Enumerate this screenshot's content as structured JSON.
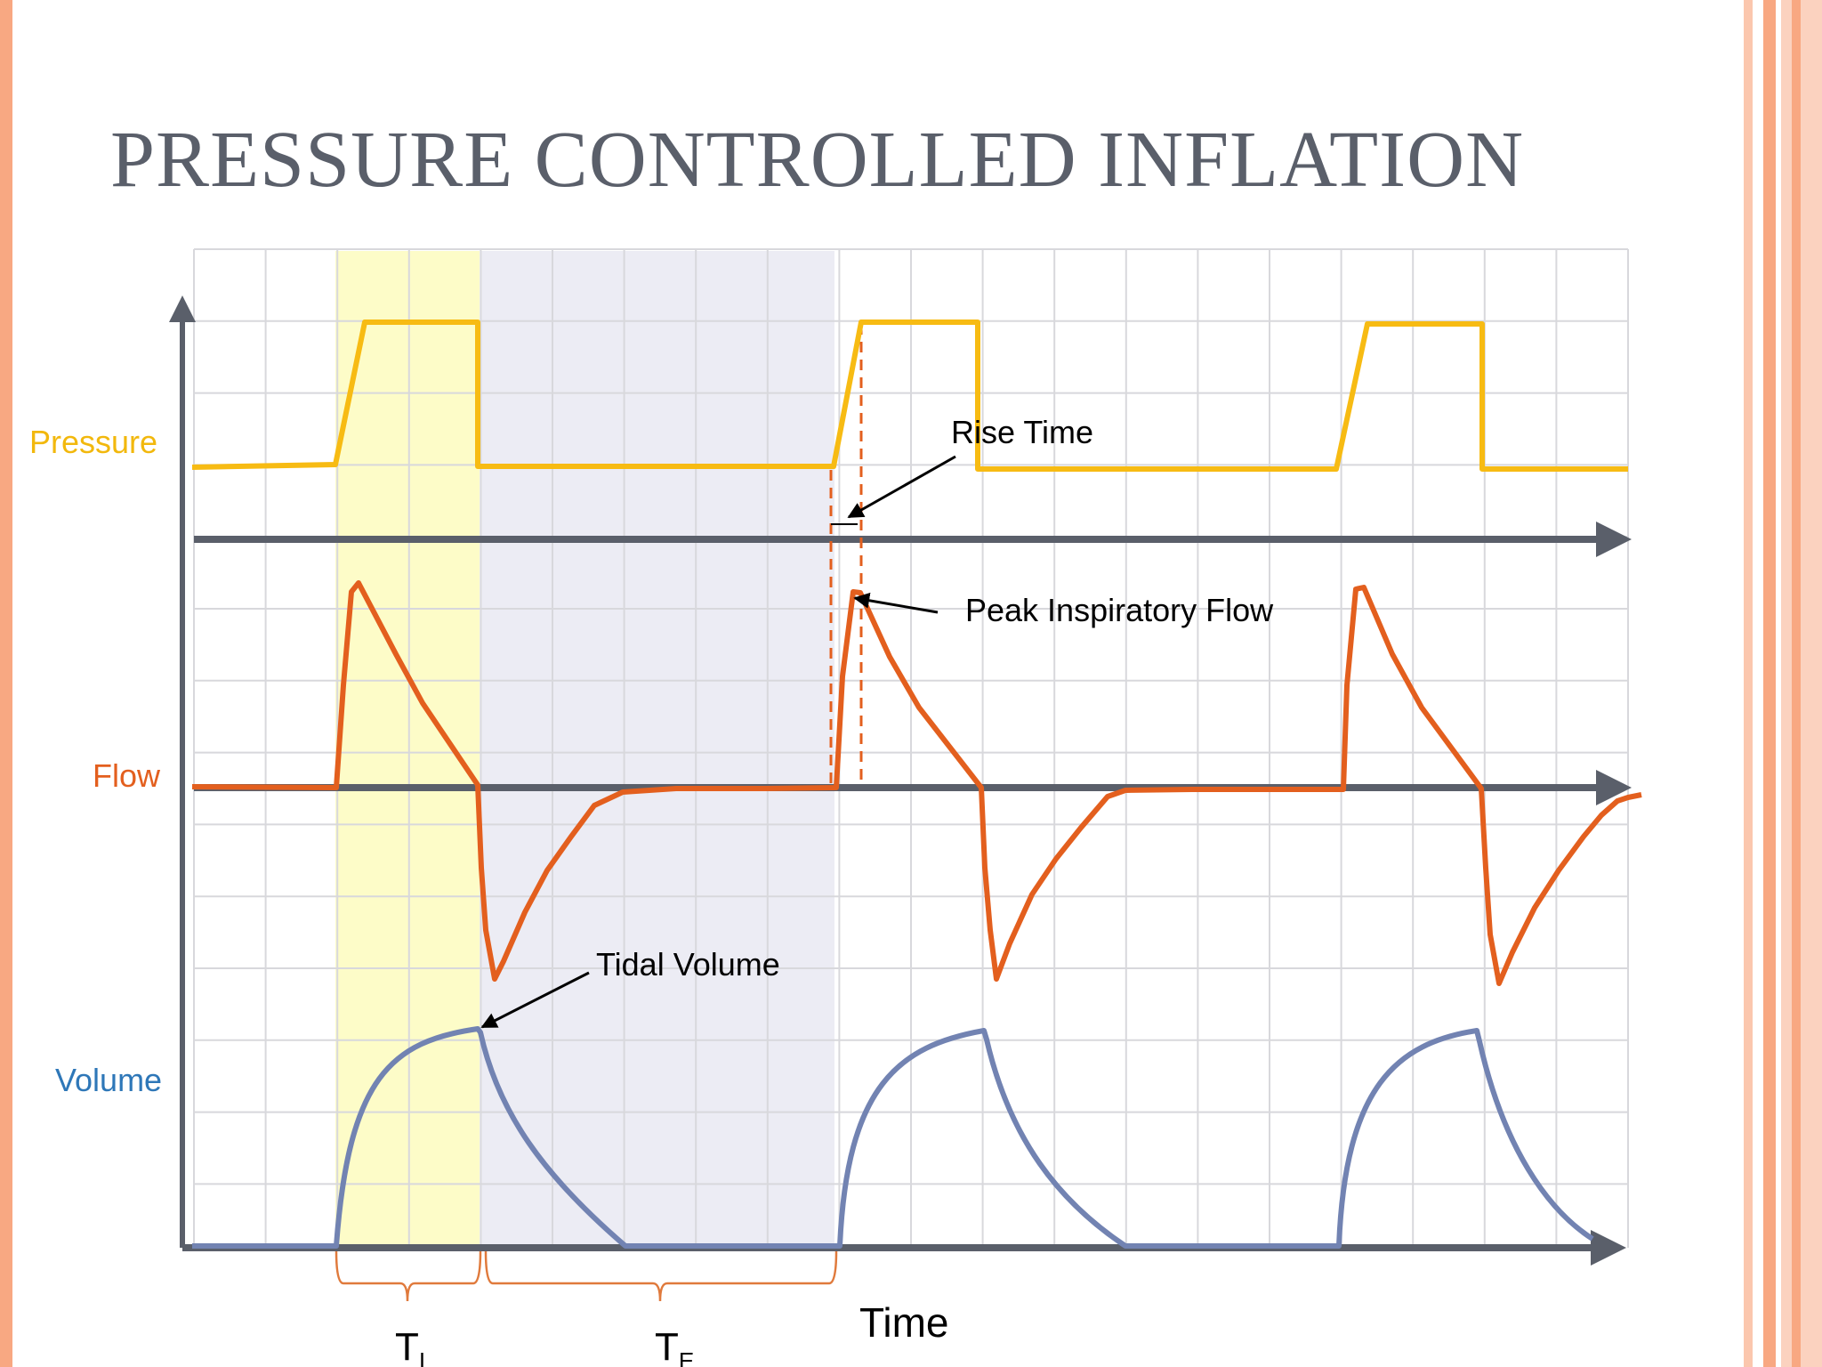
{
  "title": "PRESSURE CONTROLLED INFLATION",
  "labels": {
    "pressure": "Pressure",
    "flow": "Flow",
    "volume": "Volume",
    "time": "Time",
    "t_inspiration": "T",
    "t_inspiration_sub": "I",
    "t_expiration": "T",
    "t_expiration_sub": "E"
  },
  "annotations": {
    "rise_time": "Rise Time",
    "peak_inspiratory_flow": "Peak Inspiratory Flow",
    "tidal_volume": "Tidal Volume"
  },
  "colors": {
    "pressure": "#f7bb13",
    "flow": "#e35f1e",
    "volume": "#7283b2",
    "axis": "#5a5f6a",
    "grid": "#d8d8dc",
    "inspiration_shade": "#fdfcc8",
    "expiration_shade": "#ececf4",
    "brace": "#e07a3c",
    "pressure_label": "#f2b80d",
    "flow_label": "#e35f1e",
    "volume_label": "#2e77b8"
  }
}
